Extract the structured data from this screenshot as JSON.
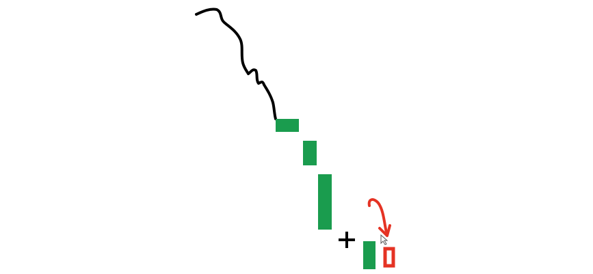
{
  "diagram": {
    "kind": "candlestick-pattern-sketch",
    "trend": "downtrend",
    "colors": {
      "background": "#ffffff",
      "trend_line": "#000000",
      "bullish_candle": "#1a9c4e",
      "bearish_candle": "#e53324",
      "annotation": "#e53324",
      "plus_sign": "#000000"
    },
    "candles": [
      {
        "role": "downtrend-candle-1",
        "color": "bullish_candle",
        "style": "filled"
      },
      {
        "role": "downtrend-candle-2",
        "color": "bullish_candle",
        "style": "filled"
      },
      {
        "role": "downtrend-candle-3",
        "color": "bullish_candle",
        "style": "filled"
      },
      {
        "role": "pattern-candle-1",
        "color": "bullish_candle",
        "style": "filled"
      },
      {
        "role": "pattern-candle-2",
        "color": "bearish_candle",
        "style": "hollow"
      }
    ],
    "symbols": {
      "plus": "+",
      "arrow": "curved-down-arrow-icon"
    }
  }
}
